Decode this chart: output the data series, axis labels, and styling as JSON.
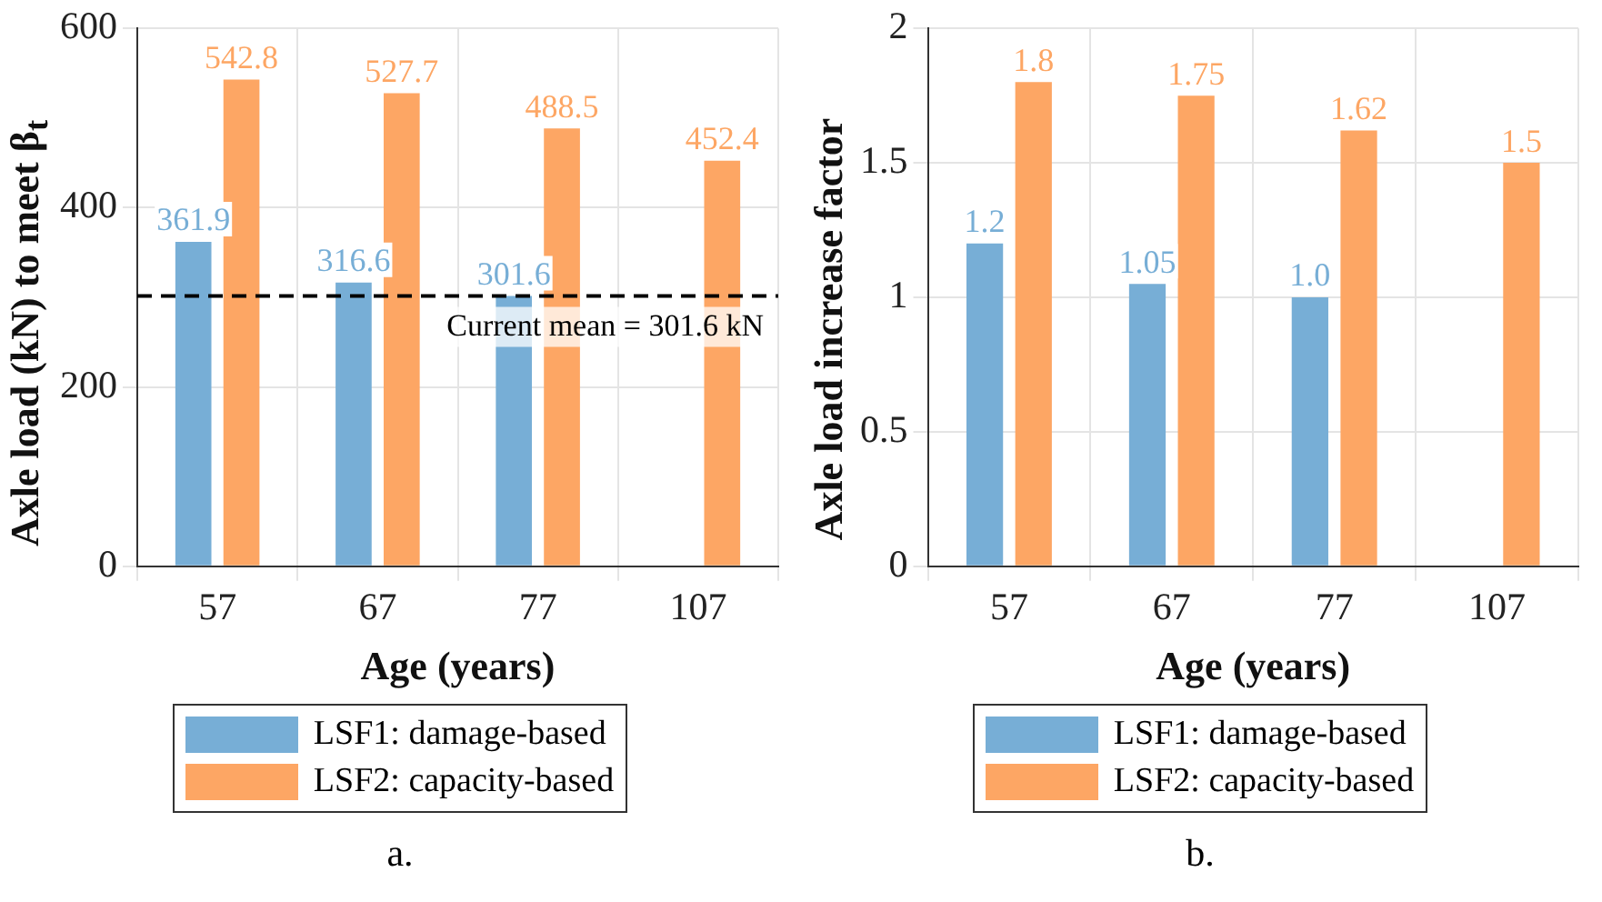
{
  "chart_data": [
    {
      "type": "bar",
      "ylabel": "Axle load (kN) to meet β$_{t}$",
      "xlabel": "Age (years)",
      "categories": [
        "57",
        "67",
        "77",
        "107"
      ],
      "series": [
        {
          "name": "LSF1: damage-based",
          "color": "#77aed6",
          "values": [
            361.9,
            316.6,
            301.6,
            null
          ]
        },
        {
          "name": "LSF2: capacity-based",
          "color": "#fda664",
          "values": [
            542.8,
            527.7,
            488.5,
            452.4
          ]
        }
      ],
      "ylim": [
        0,
        600
      ],
      "yticks": [
        0,
        200,
        400,
        600
      ],
      "grid": true,
      "legend": "bottom",
      "data_labels": true,
      "ref_lines": [
        {
          "axis": "y",
          "value": 301.6,
          "label": "Current mean = 301.6 kN",
          "color": "#000000",
          "line_style": "dashed"
        }
      ],
      "annotations": [
        "a."
      ]
    },
    {
      "type": "bar",
      "ylabel": "Axle load increase factor",
      "xlabel": "Age (years)",
      "categories": [
        "57",
        "67",
        "77",
        "107"
      ],
      "series": [
        {
          "name": "LSF1: damage-based",
          "color": "#77aed6",
          "values": [
            1.2,
            1.05,
            1.0,
            null
          ],
          "value_labels": [
            "1.2",
            "1.05",
            "1.0",
            null
          ]
        },
        {
          "name": "LSF2: capacity-based",
          "color": "#fda664",
          "values": [
            1.8,
            1.75,
            1.62,
            1.5
          ],
          "value_labels": [
            "1.8",
            "1.75",
            "1.62",
            "1.5"
          ]
        }
      ],
      "ylim": [
        0,
        2
      ],
      "yticks": [
        0,
        0.5,
        1,
        1.5,
        2
      ],
      "grid": true,
      "legend": "bottom",
      "annotations": [
        "b."
      ]
    }
  ]
}
